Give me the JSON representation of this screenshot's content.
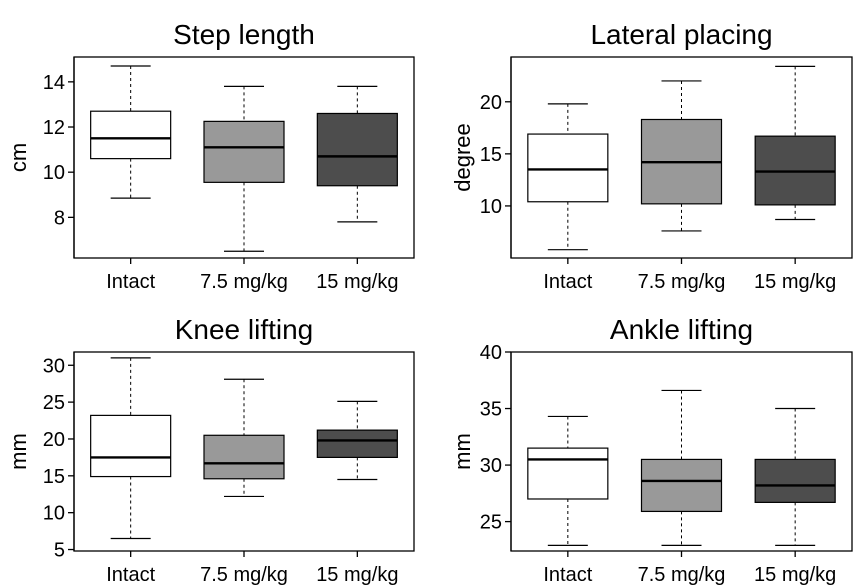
{
  "chart_data": [
    {
      "type": "box",
      "title": "Step length",
      "ylabel": "cm",
      "xlabel": "",
      "ylim": [
        6.2,
        15.1
      ],
      "yticks": [
        8,
        10,
        12,
        14
      ],
      "categories": [
        "Intact",
        "7.5 mg/kg",
        "15 mg/kg"
      ],
      "fills": [
        "#ffffff",
        "#999999",
        "#4d4d4d"
      ],
      "boxes": [
        {
          "min": 8.85,
          "q1": 10.6,
          "median": 11.5,
          "q3": 12.7,
          "max": 14.7
        },
        {
          "min": 6.5,
          "q1": 9.55,
          "median": 11.1,
          "q3": 12.25,
          "max": 13.8
        },
        {
          "min": 7.8,
          "q1": 9.4,
          "median": 10.7,
          "q3": 12.6,
          "max": 13.8
        }
      ]
    },
    {
      "type": "box",
      "title": "Lateral placing",
      "ylabel": "degree",
      "xlabel": "",
      "ylim": [
        5.0,
        24.3
      ],
      "yticks": [
        10,
        15,
        20
      ],
      "categories": [
        "Intact",
        "7.5 mg/kg",
        "15 mg/kg"
      ],
      "fills": [
        "#ffffff",
        "#999999",
        "#4d4d4d"
      ],
      "boxes": [
        {
          "min": 5.8,
          "q1": 10.4,
          "median": 13.5,
          "q3": 16.9,
          "max": 19.8
        },
        {
          "min": 7.6,
          "q1": 10.2,
          "median": 14.2,
          "q3": 18.3,
          "max": 22.0
        },
        {
          "min": 8.7,
          "q1": 10.1,
          "median": 13.3,
          "q3": 16.7,
          "max": 23.4
        }
      ]
    },
    {
      "type": "box",
      "title": "Knee lifting",
      "ylabel": "mm",
      "xlabel": "",
      "ylim": [
        4.8,
        31.8
      ],
      "yticks": [
        5,
        10,
        15,
        20,
        25,
        30
      ],
      "categories": [
        "Intact",
        "7.5 mg/kg",
        "15 mg/kg"
      ],
      "fills": [
        "#ffffff",
        "#999999",
        "#4d4d4d"
      ],
      "boxes": [
        {
          "min": 6.5,
          "q1": 14.9,
          "median": 17.5,
          "q3": 23.2,
          "max": 31.0
        },
        {
          "min": 12.2,
          "q1": 14.6,
          "median": 16.7,
          "q3": 20.5,
          "max": 28.1
        },
        {
          "min": 14.5,
          "q1": 17.5,
          "median": 19.8,
          "q3": 21.2,
          "max": 25.1
        }
      ]
    },
    {
      "type": "box",
      "title": "Ankle lifting",
      "ylabel": "mm",
      "xlabel": "",
      "ylim": [
        22.4,
        40.0
      ],
      "yticks": [
        25,
        30,
        35,
        40
      ],
      "categories": [
        "Intact",
        "7.5 mg/kg",
        "15 mg/kg"
      ],
      "fills": [
        "#ffffff",
        "#999999",
        "#4d4d4d"
      ],
      "boxes": [
        {
          "min": 22.9,
          "q1": 27.0,
          "median": 30.5,
          "q3": 31.5,
          "max": 34.3
        },
        {
          "min": 22.9,
          "q1": 25.9,
          "median": 28.6,
          "q3": 30.5,
          "max": 36.6
        },
        {
          "min": 22.9,
          "q1": 26.7,
          "median": 28.2,
          "q3": 30.5,
          "max": 35.0
        }
      ]
    }
  ]
}
